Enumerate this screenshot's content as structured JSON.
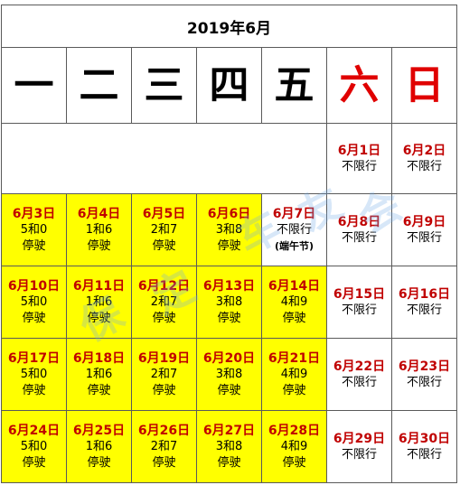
{
  "title": "2019年6月",
  "weekdays": [
    "一",
    "二",
    "三",
    "四",
    "五",
    "六",
    "日"
  ],
  "week0": [
    {
      "date": "6月1日",
      "rule": "不限行"
    },
    {
      "date": "6月2日",
      "rule": "不限行"
    }
  ],
  "week1": [
    {
      "date": "6月3日",
      "rule": "5和0",
      "status": "停驶"
    },
    {
      "date": "6月4日",
      "rule": "1和6",
      "status": "停驶"
    },
    {
      "date": "6月5日",
      "rule": "2和7",
      "status": "停驶"
    },
    {
      "date": "6月6日",
      "rule": "3和8",
      "status": "停驶"
    },
    {
      "date": "6月7日",
      "rule": "不限行",
      "status": "(端午节)"
    },
    {
      "date": "6月8日",
      "rule": "不限行"
    },
    {
      "date": "6月9日",
      "rule": "不限行"
    }
  ],
  "week2": [
    {
      "date": "6月10日",
      "rule": "5和0",
      "status": "停驶"
    },
    {
      "date": "6月11日",
      "rule": "1和6",
      "status": "停驶"
    },
    {
      "date": "6月12日",
      "rule": "2和7",
      "status": "停驶"
    },
    {
      "date": "6月13日",
      "rule": "3和8",
      "status": "停驶"
    },
    {
      "date": "6月14日",
      "rule": "4和9",
      "status": "停驶"
    },
    {
      "date": "6月15日",
      "rule": "不限行"
    },
    {
      "date": "6月16日",
      "rule": "不限行"
    }
  ],
  "week3": [
    {
      "date": "6月17日",
      "rule": "5和0",
      "status": "停驶"
    },
    {
      "date": "6月18日",
      "rule": "1和6",
      "status": "停驶"
    },
    {
      "date": "6月19日",
      "rule": "2和7",
      "status": "停驶"
    },
    {
      "date": "6月20日",
      "rule": "3和8",
      "status": "停驶"
    },
    {
      "date": "6月21日",
      "rule": "4和9",
      "status": "停驶"
    },
    {
      "date": "6月22日",
      "rule": "不限行"
    },
    {
      "date": "6月23日",
      "rule": "不限行"
    }
  ],
  "week4": [
    {
      "date": "6月24日",
      "rule": "5和0",
      "status": "停驶"
    },
    {
      "date": "6月25日",
      "rule": "1和6",
      "status": "停驶"
    },
    {
      "date": "6月26日",
      "rule": "2和7",
      "status": "停驶"
    },
    {
      "date": "6月27日",
      "rule": "3和8",
      "status": "停驶"
    },
    {
      "date": "6月28日",
      "rule": "4和9",
      "status": "停驶"
    },
    {
      "date": "6月29日",
      "rule": "不限行"
    },
    {
      "date": "6月30日",
      "rule": "不限行"
    }
  ],
  "watermark": [
    "保",
    "定",
    "车",
    "友",
    "会"
  ],
  "colors": {
    "highlight": "#ffff00",
    "date_red": "#c00000",
    "weekend_red": "#e00000",
    "border": "#5a5a5a"
  }
}
